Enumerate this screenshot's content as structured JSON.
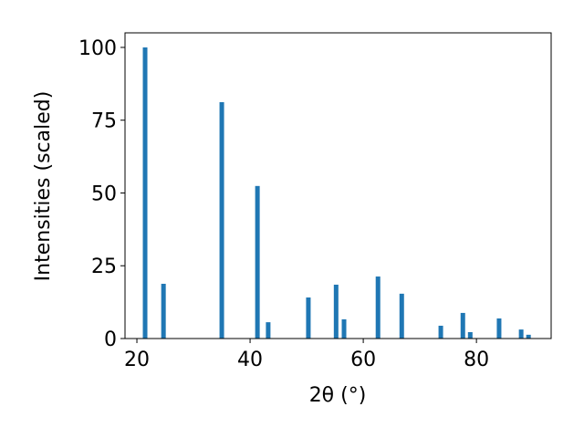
{
  "chart_data": {
    "type": "bar",
    "x_label": "2θ (°)",
    "y_label": "Intensities (scaled)",
    "x": [
      21.45,
      24.7,
      35.0,
      41.3,
      43.2,
      50.3,
      55.2,
      56.6,
      62.6,
      66.8,
      73.7,
      77.6,
      78.9,
      84.0,
      87.9,
      89.2
    ],
    "values": [
      100,
      18.8,
      81.2,
      52.4,
      5.6,
      14.1,
      18.5,
      6.6,
      21.3,
      15.4,
      4.4,
      8.8,
      2.2,
      6.9,
      3.1,
      1.3
    ],
    "color": "#1f77b4",
    "xlim": [
      17.9,
      93.2
    ],
    "xticks": [
      20,
      40,
      60,
      80
    ],
    "ylim": [
      0,
      105
    ],
    "yticks": [
      0,
      25,
      50,
      75,
      100
    ]
  }
}
